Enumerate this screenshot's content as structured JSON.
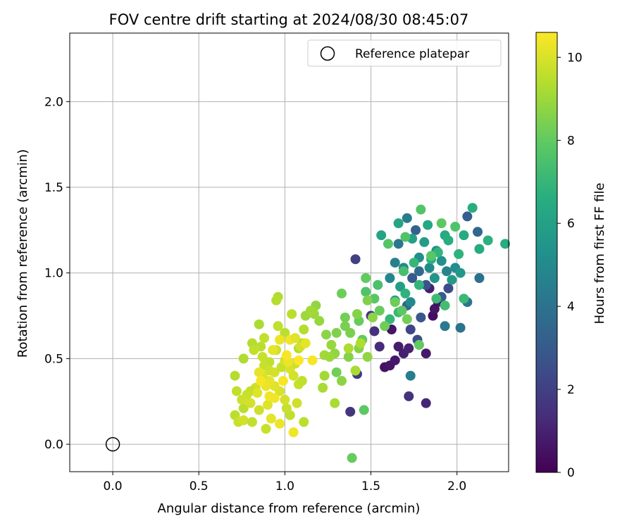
{
  "chart_data": {
    "type": "scatter",
    "title": "FOV centre drift starting at 2024/08/30 08:45:07",
    "xlabel": "Angular distance from reference (arcmin)",
    "ylabel": "Rotation from reference (arcmin)",
    "xlim": [
      -0.25,
      2.3
    ],
    "ylim": [
      -0.16,
      2.4
    ],
    "xticks": [
      "0.0",
      "0.5",
      "1.0",
      "1.5",
      "2.0"
    ],
    "yticks": [
      "0.0",
      "0.5",
      "1.0",
      "1.5",
      "2.0"
    ],
    "grid": true,
    "legend": {
      "placement": "top-right",
      "entries": [
        {
          "label": "Reference platepar",
          "marker": "open-circle"
        }
      ]
    },
    "reference_point": {
      "x": 0.0,
      "y": 0.0
    },
    "colorbar": {
      "label": "Hours from first FF file",
      "range": [
        0,
        10.6
      ],
      "ticks": [
        "0",
        "2",
        "4",
        "6",
        "8",
        "10"
      ],
      "colormap": "viridis"
    },
    "points_columns": [
      "x",
      "y",
      "hours"
    ],
    "points": [
      [
        1.58,
        0.45,
        0.5
      ],
      [
        1.61,
        0.46,
        0.6
      ],
      [
        1.64,
        0.49,
        0.7
      ],
      [
        1.66,
        0.57,
        0.8
      ],
      [
        1.62,
        0.67,
        0.6
      ],
      [
        1.69,
        0.53,
        0.9
      ],
      [
        1.72,
        0.56,
        1.0
      ],
      [
        1.82,
        0.53,
        0.7
      ],
      [
        1.86,
        0.75,
        0.4
      ],
      [
        1.87,
        0.79,
        0.6
      ],
      [
        1.89,
        0.83,
        0.5
      ],
      [
        1.84,
        0.91,
        0.9
      ],
      [
        1.55,
        0.57,
        1.3
      ],
      [
        1.52,
        0.66,
        1.5
      ],
      [
        1.5,
        0.75,
        1.7
      ],
      [
        1.42,
        0.41,
        1.8
      ],
      [
        1.38,
        0.19,
        1.6
      ],
      [
        1.72,
        0.28,
        1.5
      ],
      [
        1.82,
        0.24,
        1.1
      ],
      [
        1.41,
        1.08,
        2.0
      ],
      [
        1.73,
        0.67,
        2.2
      ],
      [
        1.77,
        0.61,
        2.5
      ],
      [
        1.79,
        0.74,
        2.9
      ],
      [
        1.82,
        0.93,
        2.7
      ],
      [
        1.91,
        0.86,
        3.1
      ],
      [
        1.95,
        0.91,
        2.4
      ],
      [
        1.71,
        0.81,
        3.4
      ],
      [
        1.74,
        0.97,
        3.0
      ],
      [
        1.78,
        1.01,
        3.7
      ],
      [
        1.76,
        1.25,
        3.3
      ],
      [
        2.12,
        1.24,
        3.5
      ],
      [
        2.06,
        1.33,
        3.2
      ],
      [
        2.13,
        0.97,
        3.9
      ],
      [
        2.06,
        0.83,
        4.1
      ],
      [
        2.02,
        0.68,
        4.0
      ],
      [
        1.93,
        0.69,
        4.3
      ],
      [
        1.73,
        0.4,
        4.5
      ],
      [
        1.66,
        1.17,
        4.2
      ],
      [
        1.71,
        1.32,
        4.4
      ],
      [
        1.61,
        0.97,
        4.8
      ],
      [
        1.64,
        1.06,
        4.6
      ],
      [
        1.69,
        1.03,
        4.9
      ],
      [
        1.78,
        1.09,
        5.2
      ],
      [
        1.84,
        1.03,
        5.0
      ],
      [
        1.87,
        0.97,
        5.5
      ],
      [
        1.91,
        1.07,
        5.3
      ],
      [
        1.94,
        1.01,
        4.7
      ],
      [
        1.97,
        0.96,
        5.7
      ],
      [
        1.99,
        1.03,
        5.1
      ],
      [
        2.02,
        1.0,
        5.6
      ],
      [
        1.88,
        1.13,
        5.4
      ],
      [
        1.81,
        1.18,
        5.8
      ],
      [
        1.73,
        0.83,
        5.0
      ],
      [
        1.67,
        0.92,
        5.9
      ],
      [
        1.64,
        0.84,
        6.0
      ],
      [
        1.56,
        1.22,
        6.1
      ],
      [
        1.66,
        1.29,
        6.2
      ],
      [
        1.74,
        1.2,
        6.0
      ],
      [
        1.83,
        1.28,
        6.3
      ],
      [
        1.93,
        1.22,
        6.4
      ],
      [
        2.04,
        1.22,
        6.5
      ],
      [
        2.09,
        1.38,
        6.6
      ],
      [
        2.13,
        1.14,
        6.5
      ],
      [
        2.18,
        1.19,
        6.7
      ],
      [
        2.28,
        1.17,
        6.6
      ],
      [
        2.01,
        1.11,
        6.8
      ],
      [
        1.95,
        1.19,
        6.6
      ],
      [
        1.89,
        1.12,
        6.9
      ],
      [
        1.85,
        1.08,
        6.7
      ],
      [
        1.78,
        0.93,
        6.9
      ],
      [
        1.75,
        1.06,
        7.0
      ],
      [
        1.7,
        0.88,
        6.8
      ],
      [
        1.66,
        0.77,
        7.1
      ],
      [
        1.61,
        0.73,
        7.0
      ],
      [
        2.04,
        0.85,
        7.1
      ],
      [
        1.88,
        0.85,
        7.2
      ],
      [
        1.93,
        0.81,
        7.3
      ],
      [
        1.69,
        1.01,
        7.4
      ],
      [
        1.54,
        0.93,
        7.5
      ],
      [
        1.47,
        0.89,
        7.6
      ],
      [
        1.52,
        0.85,
        7.8
      ],
      [
        1.6,
        1.17,
        7.7
      ],
      [
        1.68,
        0.78,
        7.9
      ],
      [
        1.7,
        1.21,
        7.6
      ],
      [
        1.79,
        1.37,
        7.7
      ],
      [
        1.85,
        1.1,
        7.8
      ],
      [
        1.91,
        1.29,
        7.9
      ],
      [
        1.99,
        1.27,
        7.6
      ],
      [
        1.47,
        0.97,
        8.0
      ],
      [
        1.43,
        0.72,
        8.1
      ],
      [
        1.45,
        0.61,
        8.0
      ],
      [
        1.46,
        0.2,
        7.9
      ],
      [
        1.55,
        0.78,
        8.1
      ],
      [
        1.58,
        0.69,
        8.2
      ],
      [
        1.64,
        0.83,
        8.2
      ],
      [
        1.71,
        0.73,
        8.3
      ],
      [
        1.78,
        0.58,
        8.0
      ],
      [
        1.38,
        0.65,
        8.4
      ],
      [
        1.35,
        0.74,
        8.3
      ],
      [
        1.3,
        0.42,
        8.3
      ],
      [
        1.33,
        0.88,
        8.2
      ],
      [
        1.3,
        0.65,
        8.5
      ],
      [
        1.35,
        0.69,
        8.4
      ],
      [
        1.39,
        -0.08,
        8.1
      ],
      [
        1.42,
        0.76,
        8.6
      ],
      [
        1.48,
        0.84,
        8.5
      ],
      [
        1.51,
        0.74,
        8.7
      ],
      [
        1.33,
        0.37,
        8.7
      ],
      [
        1.37,
        0.51,
        8.6
      ],
      [
        1.43,
        0.56,
        8.6
      ],
      [
        1.48,
        0.51,
        8.8
      ],
      [
        1.29,
        0.53,
        8.8
      ],
      [
        1.27,
        0.58,
        8.9
      ],
      [
        1.24,
        0.64,
        8.7
      ],
      [
        1.2,
        0.72,
        8.9
      ],
      [
        1.18,
        0.81,
        8.8
      ],
      [
        1.17,
        0.76,
        9.0
      ],
      [
        1.12,
        0.75,
        9.0
      ],
      [
        1.15,
        0.78,
        9.1
      ],
      [
        1.23,
        0.52,
        9.1
      ],
      [
        1.26,
        0.51,
        9.0
      ],
      [
        1.22,
        0.33,
        9.2
      ],
      [
        1.23,
        0.4,
        9.1
      ],
      [
        1.29,
        0.24,
        9.2
      ],
      [
        1.41,
        0.43,
        9.2
      ],
      [
        1.44,
        0.59,
        9.3
      ],
      [
        1.37,
        0.56,
        9.3
      ],
      [
        1.1,
        0.59,
        9.4
      ],
      [
        1.11,
        0.67,
        9.4
      ],
      [
        1.08,
        0.56,
        9.3
      ],
      [
        1.04,
        0.76,
        9.5
      ],
      [
        1.0,
        0.65,
        9.5
      ],
      [
        0.96,
        0.86,
        9.3
      ],
      [
        0.95,
        0.84,
        9.4
      ],
      [
        0.96,
        0.69,
        9.6
      ],
      [
        0.85,
        0.7,
        9.2
      ],
      [
        0.88,
        0.62,
        9.6
      ],
      [
        0.86,
        0.57,
        9.5
      ],
      [
        0.81,
        0.59,
        9.4
      ],
      [
        0.82,
        0.55,
        9.6
      ],
      [
        0.76,
        0.5,
        9.3
      ],
      [
        0.87,
        0.51,
        9.7
      ],
      [
        0.91,
        0.48,
        9.6
      ],
      [
        0.95,
        0.55,
        9.8
      ],
      [
        0.88,
        0.46,
        9.7
      ],
      [
        0.91,
        0.43,
        9.8
      ],
      [
        0.94,
        0.42,
        9.9
      ],
      [
        0.98,
        0.45,
        9.7
      ],
      [
        1.0,
        0.49,
        9.9
      ],
      [
        1.03,
        0.44,
        10.0
      ],
      [
        1.06,
        0.47,
        9.8
      ],
      [
        1.09,
        0.57,
        9.9
      ],
      [
        1.08,
        0.35,
        9.7
      ],
      [
        1.05,
        0.4,
        9.9
      ],
      [
        1.1,
        0.37,
        9.6
      ],
      [
        1.11,
        0.13,
        9.5
      ],
      [
        1.07,
        0.24,
        9.8
      ],
      [
        1.03,
        0.17,
        9.6
      ],
      [
        1.01,
        0.21,
        9.7
      ],
      [
        1.0,
        0.26,
        9.9
      ],
      [
        0.97,
        0.31,
        10.0
      ],
      [
        0.94,
        0.34,
        10.1
      ],
      [
        0.91,
        0.37,
        10.2
      ],
      [
        0.87,
        0.4,
        10.0
      ],
      [
        0.85,
        0.42,
        10.2
      ],
      [
        0.83,
        0.33,
        9.8
      ],
      [
        0.8,
        0.31,
        9.6
      ],
      [
        0.78,
        0.29,
        9.7
      ],
      [
        0.76,
        0.21,
        9.5
      ],
      [
        0.75,
        0.26,
        9.8
      ],
      [
        0.72,
        0.31,
        9.6
      ],
      [
        0.71,
        0.4,
        9.4
      ],
      [
        0.71,
        0.17,
        9.5
      ],
      [
        0.73,
        0.13,
        9.7
      ],
      [
        0.76,
        0.14,
        9.9
      ],
      [
        0.81,
        0.13,
        9.6
      ],
      [
        0.85,
        0.2,
        9.8
      ],
      [
        0.89,
        0.09,
        9.7
      ],
      [
        0.92,
        0.15,
        10.2
      ],
      [
        0.97,
        0.12,
        10.3
      ],
      [
        1.05,
        0.07,
        10.4
      ],
      [
        0.9,
        0.23,
        10.1
      ],
      [
        0.94,
        0.27,
        10.4
      ],
      [
        0.99,
        0.37,
        10.5
      ],
      [
        1.02,
        0.48,
        10.3
      ],
      [
        1.01,
        0.52,
        10.5
      ],
      [
        0.97,
        0.61,
        10.3
      ],
      [
        1.03,
        0.61,
        10.4
      ],
      [
        0.93,
        0.55,
        10.2
      ],
      [
        0.91,
        0.28,
        10.4
      ],
      [
        0.89,
        0.34,
        10.3
      ],
      [
        0.86,
        0.37,
        10.5
      ],
      [
        0.84,
        0.3,
        10.1
      ],
      [
        1.08,
        0.49,
        10.6
      ],
      [
        1.12,
        0.59,
        10.2
      ],
      [
        1.16,
        0.49,
        10.5
      ],
      [
        0.8,
        0.24,
        9.9
      ],
      [
        1.06,
        0.62,
        10.1
      ]
    ]
  }
}
